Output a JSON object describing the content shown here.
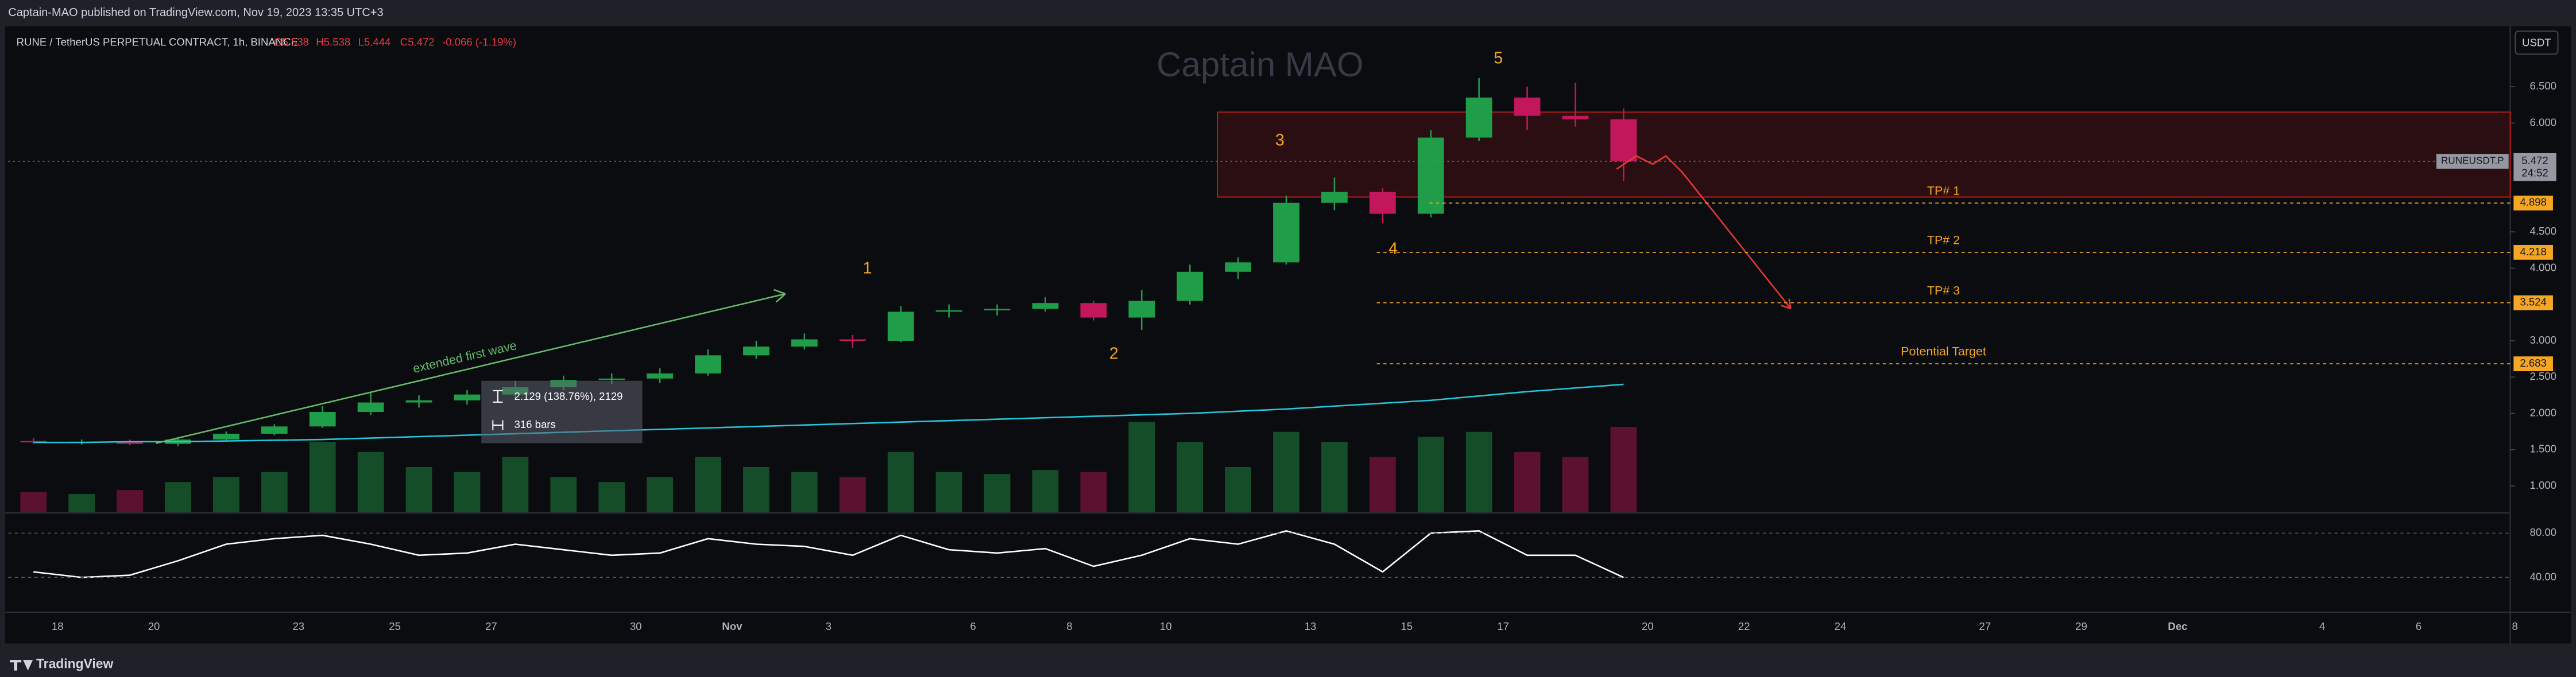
{
  "header": {
    "publisher": "Captain-MAO published on TradingView.com, Nov 19, 2023 13:35 UTC+3",
    "currency_button": "USDT",
    "brand": "TradingView"
  },
  "chart_data": {
    "type": "candlestick",
    "title": "RUNE / TetherUS PERPETUAL CONTRACT, 1h, BINANCE",
    "legend_values": [
      "O5.538",
      "H5.538",
      "L5.444",
      "C5.472",
      "-0.066 (-1.19%)"
    ],
    "watermark": "Captain MAO",
    "categories": [
      null,
      "18",
      null,
      "20",
      null,
      null,
      "23",
      null,
      "25",
      null,
      "27",
      null,
      null,
      "30",
      null,
      "Nov",
      null,
      "3",
      null,
      null,
      "6",
      null,
      "8",
      null,
      "10",
      null,
      null,
      "13",
      null,
      "15",
      null,
      "17",
      null,
      null,
      "20",
      null,
      "22",
      null,
      "24",
      null,
      null,
      "27",
      null,
      "29",
      null,
      "Dec",
      null,
      null,
      "4",
      null,
      "6",
      null,
      "8"
    ],
    "open": [
      1.62,
      1.6,
      1.61,
      1.58,
      1.64,
      1.72,
      1.82,
      2.02,
      2.15,
      2.18,
      2.26,
      2.36,
      2.46,
      2.48,
      2.55,
      2.8,
      2.92,
      3.02,
      3.0,
      3.4,
      3.42,
      3.44,
      3.52,
      3.32,
      3.55,
      3.95,
      4.08,
      4.9,
      5.05,
      4.75,
      5.8,
      6.35,
      6.1,
      6.05,
      null,
      null,
      null,
      null,
      null,
      null,
      null,
      null,
      null,
      null,
      null,
      null,
      null,
      null,
      null,
      null,
      null,
      null,
      null
    ],
    "high": [
      1.66,
      1.64,
      1.64,
      1.66,
      1.75,
      1.85,
      2.1,
      2.28,
      2.25,
      2.32,
      2.45,
      2.52,
      2.55,
      2.62,
      2.88,
      3.0,
      3.1,
      3.08,
      3.48,
      3.5,
      3.5,
      3.6,
      3.55,
      3.7,
      4.05,
      4.15,
      5.0,
      5.25,
      5.1,
      5.9,
      6.62,
      6.5,
      6.55,
      6.2,
      null,
      null,
      null,
      null,
      null,
      null,
      null,
      null,
      null,
      null,
      null,
      null,
      null,
      null,
      null,
      null,
      null,
      null,
      null
    ],
    "low": [
      1.58,
      1.57,
      1.56,
      1.55,
      1.62,
      1.7,
      1.8,
      1.98,
      2.08,
      2.12,
      2.2,
      2.32,
      2.4,
      2.42,
      2.52,
      2.75,
      2.88,
      2.9,
      2.98,
      3.32,
      3.35,
      3.4,
      3.28,
      3.15,
      3.5,
      3.85,
      4.05,
      4.8,
      4.62,
      4.7,
      5.75,
      5.9,
      5.95,
      5.2,
      null,
      null,
      null,
      null,
      null,
      null,
      null,
      null,
      null,
      null,
      null,
      null,
      null,
      null,
      null,
      null,
      null,
      null,
      null
    ],
    "close": [
      1.6,
      1.61,
      1.58,
      1.64,
      1.72,
      1.82,
      2.02,
      2.15,
      2.18,
      2.26,
      2.36,
      2.46,
      2.48,
      2.55,
      2.8,
      2.92,
      3.02,
      3.0,
      3.4,
      3.42,
      3.44,
      3.52,
      3.32,
      3.55,
      3.95,
      4.08,
      4.9,
      5.05,
      4.75,
      5.8,
      6.35,
      6.1,
      6.05,
      5.472,
      null,
      null,
      null,
      null,
      null,
      null,
      null,
      null,
      null,
      null,
      null,
      null,
      null,
      null,
      null,
      null,
      null,
      null,
      null
    ],
    "up_color": "#1f9d48",
    "down_color": "#c2185b",
    "ema": {
      "color": "#26c6da",
      "values": [
        1.6,
        1.6,
        1.61,
        1.61,
        1.62,
        1.63,
        1.64,
        1.66,
        1.68,
        1.7,
        1.72,
        1.74,
        1.76,
        1.78,
        1.8,
        1.82,
        1.84,
        1.86,
        1.88,
        1.9,
        1.92,
        1.94,
        1.96,
        1.98,
        2.0,
        2.03,
        2.06,
        2.1,
        2.14,
        2.18,
        2.24,
        2.3,
        2.35,
        2.4,
        null,
        null,
        null,
        null,
        null,
        null,
        null,
        null,
        null,
        null,
        null,
        null,
        null,
        null,
        null,
        null,
        null,
        null,
        null
      ]
    },
    "volume": {
      "values": [
        20,
        18,
        22,
        30,
        35,
        40,
        70,
        60,
        45,
        40,
        55,
        35,
        30,
        35,
        55,
        45,
        40,
        35,
        60,
        40,
        38,
        42,
        40,
        90,
        70,
        45,
        80,
        70,
        55,
        75,
        80,
        60,
        55,
        85,
        null,
        null,
        null,
        null,
        null,
        null,
        null,
        null,
        null,
        null,
        null,
        null,
        null,
        null,
        null,
        null,
        null,
        null,
        null
      ]
    },
    "ylim": [
      0.64,
      7.31
    ],
    "yticks": [
      {
        "value": 1,
        "label": "1.000"
      },
      {
        "value": 1.5,
        "label": "1.500"
      },
      {
        "value": 2,
        "label": "2.000"
      },
      {
        "value": 2.5,
        "label": "2.500"
      },
      {
        "value": 3,
        "label": "3.000"
      },
      {
        "value": 4,
        "label": "4.000"
      },
      {
        "value": 4.5,
        "label": "4.500"
      },
      {
        "value": 6,
        "label": "6.000"
      },
      {
        "value": 6.5,
        "label": "6.500"
      }
    ],
    "symbol": "RUNEUSDT.P",
    "last_price": 5.472,
    "countdown": "24:52",
    "zone": {
      "from": 4.98,
      "to": 6.15,
      "color": "#b71c1c"
    },
    "level_color": "#f5a623",
    "levels": [
      {
        "name": "TP# 1",
        "value": 4.898
      },
      {
        "name": "TP# 2",
        "value": 4.218
      },
      {
        "name": "TP# 3",
        "value": 3.524
      },
      {
        "name": "Potential Target",
        "value": 2.683
      }
    ],
    "wave_labels": [
      "1",
      "2",
      "3",
      "4",
      "5"
    ],
    "annotation": "extended first wave",
    "measure": {
      "change": "2.129 (138.76%), 2129",
      "bars": "316 bars"
    },
    "rsi": {
      "color": "#ffffff",
      "values": [
        45,
        40,
        42,
        55,
        70,
        75,
        78,
        70,
        60,
        62,
        70,
        65,
        60,
        62,
        75,
        70,
        68,
        60,
        78,
        65,
        62,
        66,
        50,
        60,
        75,
        70,
        82,
        70,
        45,
        80,
        82,
        60,
        60,
        40,
        null,
        null,
        null,
        null,
        null,
        null,
        null,
        null,
        null,
        null,
        null,
        null,
        null,
        null,
        null,
        null,
        null,
        null,
        null
      ],
      "ylim": [
        10,
        96
      ],
      "yticks": [
        {
          "value": 80,
          "label": "80.00"
        },
        {
          "value": 40,
          "label": "40.00"
        }
      ]
    }
  }
}
